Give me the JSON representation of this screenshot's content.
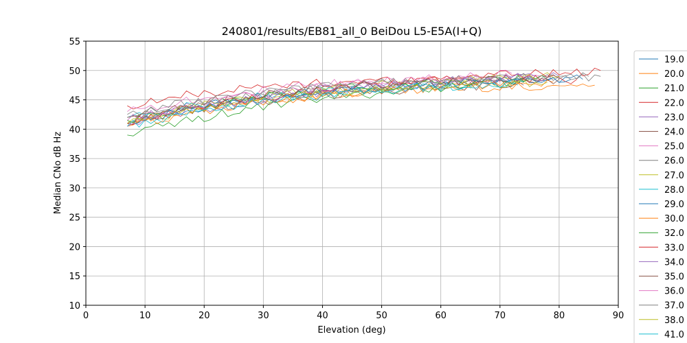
{
  "chart_data": {
    "type": "line",
    "title": "240801/results/EB81_all_0 BeiDou L5-E5A(I+Q)",
    "xlabel": "Elevation (deg)",
    "ylabel": "Median CNo dB Hz",
    "xlim": [
      0,
      90
    ],
    "ylim": [
      10,
      55
    ],
    "xticks": [
      "0",
      "10",
      "20",
      "30",
      "40",
      "50",
      "60",
      "70",
      "80",
      "90"
    ],
    "yticks": [
      "10",
      "15",
      "20",
      "25",
      "30",
      "35",
      "40",
      "45",
      "50",
      "55"
    ],
    "grid": true,
    "legend_position": "right",
    "series": [
      {
        "name": "19.0",
        "color": "#1f77b4",
        "x": [
          7,
          84
        ],
        "y": [
          41.5,
          48.5
        ]
      },
      {
        "name": "20.0",
        "color": "#ff7f0e",
        "x": [
          7,
          86
        ],
        "y": [
          41.0,
          47.5
        ]
      },
      {
        "name": "21.0",
        "color": "#2ca02c",
        "x": [
          7,
          78
        ],
        "y": [
          39.0,
          48.5
        ]
      },
      {
        "name": "22.0",
        "color": "#d62728",
        "x": [
          7,
          83
        ],
        "y": [
          44.0,
          48.5
        ]
      },
      {
        "name": "23.0",
        "color": "#9467bd",
        "x": [
          7,
          80
        ],
        "y": [
          41.5,
          49.0
        ]
      },
      {
        "name": "24.0",
        "color": "#8c564b",
        "x": [
          7,
          74
        ],
        "y": [
          41.0,
          47.5
        ]
      },
      {
        "name": "25.0",
        "color": "#e377c2",
        "x": [
          7,
          77
        ],
        "y": [
          43.0,
          49.0
        ]
      },
      {
        "name": "26.0",
        "color": "#7f7f7f",
        "x": [
          7,
          87
        ],
        "y": [
          42.0,
          49.0
        ]
      },
      {
        "name": "27.0",
        "color": "#bcbd22",
        "x": [
          7,
          80
        ],
        "y": [
          41.5,
          49.0
        ]
      },
      {
        "name": "28.0",
        "color": "#17becf",
        "x": [
          7,
          73
        ],
        "y": [
          42.0,
          47.5
        ]
      },
      {
        "name": "29.0",
        "color": "#1f77b4",
        "x": [
          7,
          82
        ],
        "y": [
          41.0,
          48.5
        ]
      },
      {
        "name": "30.0",
        "color": "#ff7f0e",
        "x": [
          7,
          79
        ],
        "y": [
          40.5,
          48.0
        ]
      },
      {
        "name": "32.0",
        "color": "#2ca02c",
        "x": [
          7,
          75
        ],
        "y": [
          41.5,
          48.5
        ]
      },
      {
        "name": "33.0",
        "color": "#d62728",
        "x": [
          7,
          87
        ],
        "y": [
          41.0,
          50.0
        ]
      },
      {
        "name": "34.0",
        "color": "#9467bd",
        "x": [
          7,
          76
        ],
        "y": [
          40.5,
          49.0
        ]
      },
      {
        "name": "35.0",
        "color": "#8c564b",
        "x": [
          7,
          80
        ],
        "y": [
          42.0,
          48.5
        ]
      },
      {
        "name": "36.0",
        "color": "#e377c2",
        "x": [
          7,
          72
        ],
        "y": [
          41.5,
          49.5
        ]
      },
      {
        "name": "37.0",
        "color": "#7f7f7f",
        "x": [
          7,
          85
        ],
        "y": [
          42.5,
          49.0
        ]
      },
      {
        "name": "38.0",
        "color": "#bcbd22",
        "x": [
          7,
          78
        ],
        "y": [
          41.0,
          48.0
        ]
      },
      {
        "name": "41.0",
        "color": "#17becf",
        "x": [
          7,
          74
        ],
        "y": [
          40.5,
          48.0
        ]
      }
    ]
  }
}
